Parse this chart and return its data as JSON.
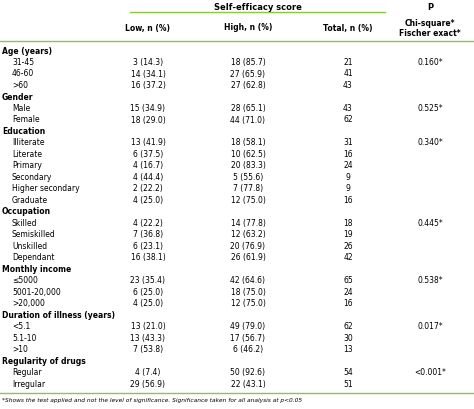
{
  "header_top": "Self-efficacy score",
  "header_p": "P",
  "col_headers": [
    "Low, n (%)",
    "High, n (%)",
    "Total, n (%)",
    "Chi-square*\nFischer exact*"
  ],
  "rows": [
    {
      "label": "Age (years)",
      "indent": 0,
      "bold": true,
      "low": "",
      "high": "",
      "total": "",
      "p": ""
    },
    {
      "label": "31-45",
      "indent": 1,
      "bold": false,
      "low": "3 (14.3)",
      "high": "18 (85.7)",
      "total": "21",
      "p": "0.160*"
    },
    {
      "label": "46-60",
      "indent": 1,
      "bold": false,
      "low": "14 (34.1)",
      "high": "27 (65.9)",
      "total": "41",
      "p": ""
    },
    {
      "label": ">60",
      "indent": 1,
      "bold": false,
      "low": "16 (37.2)",
      "high": "27 (62.8)",
      "total": "43",
      "p": ""
    },
    {
      "label": "Gender",
      "indent": 0,
      "bold": true,
      "low": "",
      "high": "",
      "total": "",
      "p": ""
    },
    {
      "label": "Male",
      "indent": 1,
      "bold": false,
      "low": "15 (34.9)",
      "high": "28 (65.1)",
      "total": "43",
      "p": "0.525*"
    },
    {
      "label": "Female",
      "indent": 1,
      "bold": false,
      "low": "18 (29.0)",
      "high": "44 (71.0)",
      "total": "62",
      "p": ""
    },
    {
      "label": "Education",
      "indent": 0,
      "bold": true,
      "low": "",
      "high": "",
      "total": "",
      "p": ""
    },
    {
      "label": "Illiterate",
      "indent": 1,
      "bold": false,
      "low": "13 (41.9)",
      "high": "18 (58.1)",
      "total": "31",
      "p": "0.340*"
    },
    {
      "label": "Literate",
      "indent": 1,
      "bold": false,
      "low": "6 (37.5)",
      "high": "10 (62.5)",
      "total": "16",
      "p": ""
    },
    {
      "label": "Primary",
      "indent": 1,
      "bold": false,
      "low": "4 (16.7)",
      "high": "20 (83.3)",
      "total": "24",
      "p": ""
    },
    {
      "label": "Secondary",
      "indent": 1,
      "bold": false,
      "low": "4 (44.4)",
      "high": "5 (55.6)",
      "total": "9",
      "p": ""
    },
    {
      "label": "Higher secondary",
      "indent": 1,
      "bold": false,
      "low": "2 (22.2)",
      "high": "7 (77.8)",
      "total": "9",
      "p": ""
    },
    {
      "label": "Graduate",
      "indent": 1,
      "bold": false,
      "low": "4 (25.0)",
      "high": "12 (75.0)",
      "total": "16",
      "p": ""
    },
    {
      "label": "Occupation",
      "indent": 0,
      "bold": true,
      "low": "",
      "high": "",
      "total": "",
      "p": ""
    },
    {
      "label": "Skilled",
      "indent": 1,
      "bold": false,
      "low": "4 (22.2)",
      "high": "14 (77.8)",
      "total": "18",
      "p": "0.445*"
    },
    {
      "label": "Semiskilled",
      "indent": 1,
      "bold": false,
      "low": "7 (36.8)",
      "high": "12 (63.2)",
      "total": "19",
      "p": ""
    },
    {
      "label": "Unskilled",
      "indent": 1,
      "bold": false,
      "low": "6 (23.1)",
      "high": "20 (76.9)",
      "total": "26",
      "p": ""
    },
    {
      "label": "Dependant",
      "indent": 1,
      "bold": false,
      "low": "16 (38.1)",
      "high": "26 (61.9)",
      "total": "42",
      "p": ""
    },
    {
      "label": "Monthly income",
      "indent": 0,
      "bold": true,
      "low": "",
      "high": "",
      "total": "",
      "p": ""
    },
    {
      "label": "≤5000",
      "indent": 1,
      "bold": false,
      "low": "23 (35.4)",
      "high": "42 (64.6)",
      "total": "65",
      "p": "0.538*"
    },
    {
      "label": "5001-20,000",
      "indent": 1,
      "bold": false,
      "low": "6 (25.0)",
      "high": "18 (75.0)",
      "total": "24",
      "p": ""
    },
    {
      "label": ">20,000",
      "indent": 1,
      "bold": false,
      "low": "4 (25.0)",
      "high": "12 (75.0)",
      "total": "16",
      "p": ""
    },
    {
      "label": "Duration of illness (years)",
      "indent": 0,
      "bold": true,
      "low": "",
      "high": "",
      "total": "",
      "p": ""
    },
    {
      "label": "<5.1",
      "indent": 1,
      "bold": false,
      "low": "13 (21.0)",
      "high": "49 (79.0)",
      "total": "62",
      "p": "0.017*"
    },
    {
      "label": "5.1-10",
      "indent": 1,
      "bold": false,
      "low": "13 (43.3)",
      "high": "17 (56.7)",
      "total": "30",
      "p": ""
    },
    {
      "label": ">10",
      "indent": 1,
      "bold": false,
      "low": "7 (53.8)",
      "high": "6 (46.2)",
      "total": "13",
      "p": ""
    },
    {
      "label": "Regularity of drugs",
      "indent": 0,
      "bold": true,
      "low": "",
      "high": "",
      "total": "",
      "p": ""
    },
    {
      "label": "Regular",
      "indent": 1,
      "bold": false,
      "low": "4 (7.4)",
      "high": "50 (92.6)",
      "total": "54",
      "p": "<0.001*"
    },
    {
      "label": "Irregular",
      "indent": 1,
      "bold": false,
      "low": "29 (56.9)",
      "high": "22 (43.1)",
      "total": "51",
      "p": ""
    }
  ],
  "footnote": "*Shows the test applied and not the level of significance. Significance taken for all analysis at p<0.05",
  "line_color": "#8DC63F",
  "bg_color": "#FFFFFF",
  "text_color": "#000000",
  "font_size": 5.5,
  "header_font_size": 6.0,
  "footnote_font_size": 4.2
}
